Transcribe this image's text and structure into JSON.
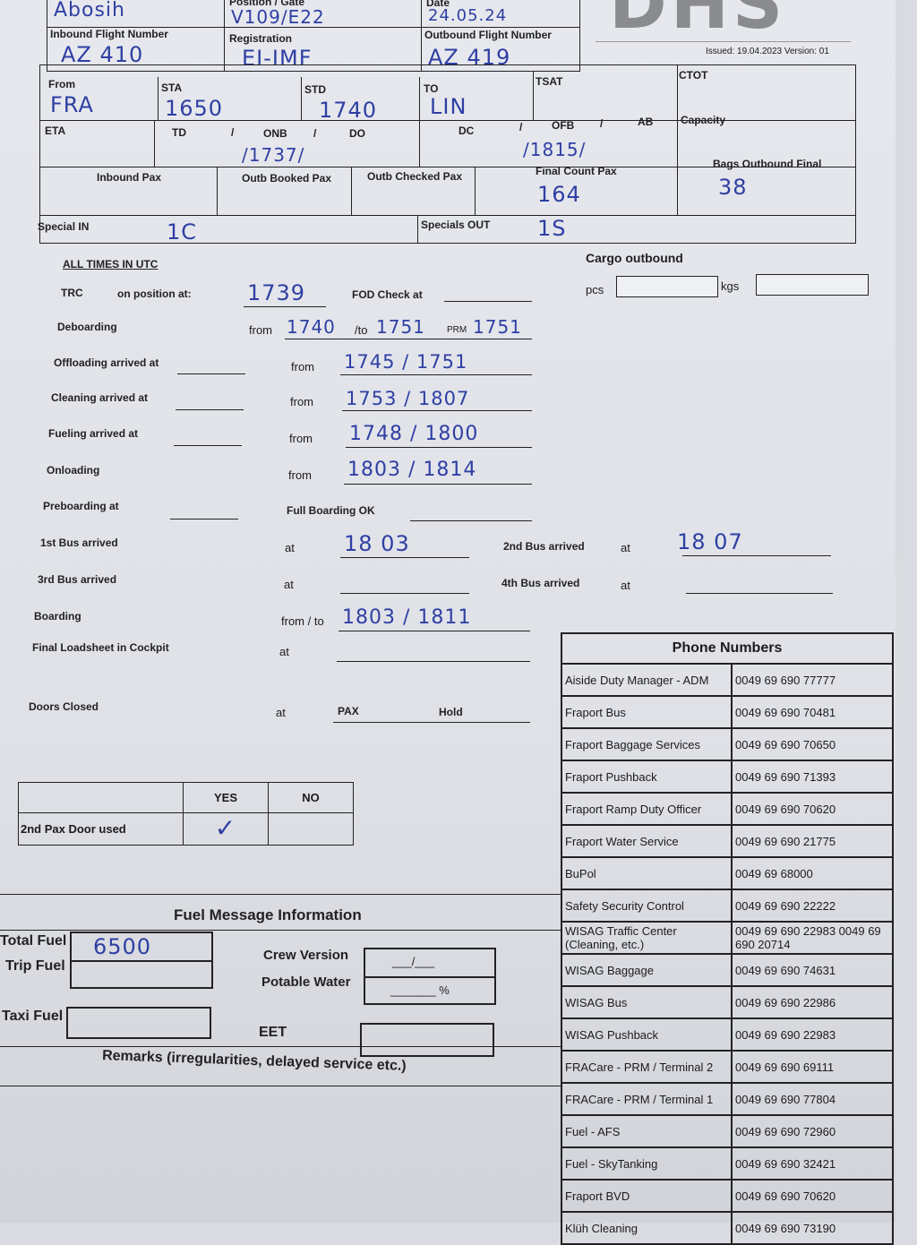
{
  "header": {
    "name_hw": "Abosih",
    "position_gate_label": "Position / Gate",
    "position_gate": "V109/E22",
    "date_label": "Date",
    "date": "24.05.24",
    "logo": "DHS",
    "issued": "Issued: 19.04.2023 Version: 01",
    "inbound_flight_label": "Inbound Flight Number",
    "inbound_flight": "AZ 410",
    "registration_label": "Registration",
    "registration": "EI-IMF",
    "outbound_flight_label": "Outbound Flight Number",
    "outbound_flight": "AZ 419"
  },
  "row2": {
    "from_label": "From",
    "from": "FRA",
    "sta_label": "STA",
    "sta": "1650",
    "std_label": "STD",
    "std": "1740",
    "to_label": "TO",
    "to": "LIN",
    "tsat_label": "TSAT",
    "ctot_label": "CTOT"
  },
  "row3": {
    "eta_label": "ETA",
    "td_label": "TD",
    "onb_label": "ONB",
    "do_label": "DO",
    "onb_value": "/1737/",
    "dc_label": "DC",
    "ofb_label": "OFB",
    "ab_label": "AB",
    "ofb_value": "/1815/",
    "capacity_label": "Capacity",
    "slash": "/"
  },
  "row4": {
    "inbound_pax_label": "Inbound Pax",
    "outb_booked_label": "Outb Booked Pax",
    "outb_checked_label": "Outb Checked Pax",
    "final_count_label": "Final Count Pax",
    "final_count": "164",
    "bags_label": "Bags Outbound Final",
    "bags": "38"
  },
  "row5": {
    "special_in_label": "Special IN",
    "special_in": "1C",
    "specials_out_label": "Specials OUT",
    "specials_out": "1S"
  },
  "times": {
    "all_utc": "ALL TIMES IN UTC",
    "cargo_label": "Cargo outbound",
    "pcs": "pcs",
    "kgs": "kgs",
    "fod": "FOD Check at",
    "trc": "TRC",
    "on_position": "on position at:",
    "trc_value": "1739",
    "deboarding": "Deboarding",
    "from": "from",
    "deb_from": "1740",
    "deb_to_label": "/to",
    "deb_to": "1751",
    "prm_label": "PRM",
    "prm": "1751",
    "offloading": "Offloading arrived at",
    "off_value": "1745 / 1751",
    "cleaning": "Cleaning arrived at",
    "clean_value": "1753 / 1807",
    "fueling": "Fueling arrived at",
    "fuel_value": "1748 / 1800",
    "onloading": "Onloading",
    "onl_value": "1803 / 1814",
    "preboarding": "Preboarding at",
    "full_boarding": "Full Boarding OK",
    "bus1": "1st Bus arrived",
    "at": "at",
    "bus1_value": "18 03",
    "bus2": "2nd Bus arrived",
    "bus2_value": "18 07",
    "bus3": "3rd Bus arrived",
    "bus4": "4th Bus arrived",
    "boarding": "Boarding",
    "from_to": "from / to",
    "boarding_value": "1803 / 1811",
    "loadsheet": "Final Loadsheet in Cockpit",
    "doors": "Doors Closed",
    "pax": "PAX",
    "hold": "Hold"
  },
  "pax_door": {
    "yes": "YES",
    "no": "NO",
    "label": "2nd Pax Door used",
    "check": "✓"
  },
  "fuel": {
    "title": "Fuel Message Information",
    "total": "Total Fuel",
    "total_value": "6500",
    "trip": "Trip Fuel",
    "taxi": "Taxi Fuel",
    "crew": "Crew Version",
    "crew_value": "___/___",
    "potable": "Potable Water",
    "potable_value": "_______ %",
    "eet": "EET",
    "remarks": "Remarks (irregularities, delayed service etc.)"
  },
  "phones": {
    "title": "Phone Numbers",
    "rows": [
      [
        "Aiside Duty Manager - ADM",
        "0049 69 690 77777"
      ],
      [
        "Fraport Bus",
        "0049 69 690 70481"
      ],
      [
        "Fraport Baggage Services",
        "0049 69 690 70650"
      ],
      [
        "Fraport Pushback",
        "0049 69 690 71393"
      ],
      [
        "Fraport Ramp Duty Officer",
        "0049 69 690 70620"
      ],
      [
        "Fraport Water Service",
        "0049 69 690 21775"
      ],
      [
        "BuPol",
        "0049 69 68000"
      ],
      [
        "Safety Security Control",
        "0049 69 690 22222"
      ],
      [
        "WISAG Traffic Center (Cleaning, etc.)",
        "0049 69 690 22983 0049 69 690 20714"
      ],
      [
        "WISAG Baggage",
        "0049 69 690 74631"
      ],
      [
        "WISAG Bus",
        "0049 69 690 22986"
      ],
      [
        "WISAG Pushback",
        "0049 69 690 22983"
      ],
      [
        "FRACare - PRM / Terminal 2",
        "0049 69 690 69111"
      ],
      [
        "FRACare - PRM / Terminal 1",
        "0049 69 690 77804"
      ],
      [
        "Fuel - AFS",
        "0049 69 690 72960"
      ],
      [
        "Fuel - SkyTanking",
        "0049 69 690 32421"
      ],
      [
        "Fraport BVD",
        "0049 69 690 70620"
      ],
      [
        "Klüh Cleaning",
        "0049 69 690 73190"
      ]
    ]
  }
}
